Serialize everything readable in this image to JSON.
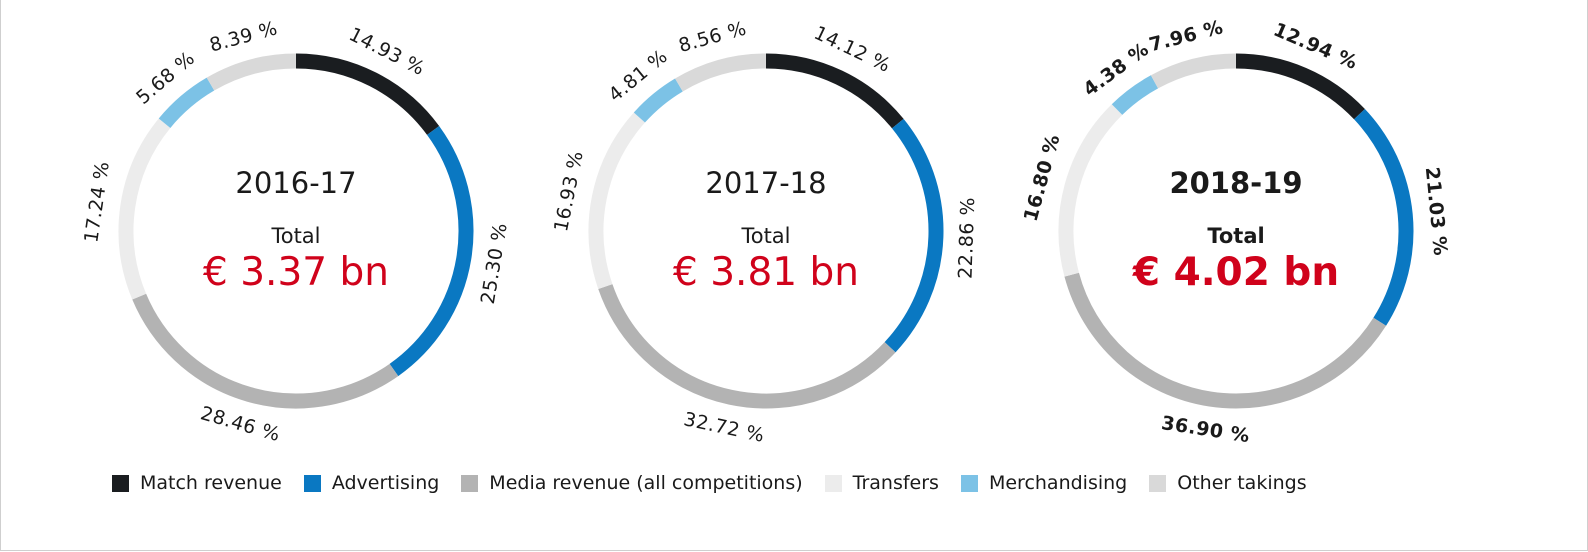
{
  "chart_data": {
    "type": "pie",
    "categories": [
      "Match revenue",
      "Advertising",
      "Media revenue (all competitions)",
      "Transfers",
      "Merchandising",
      "Other takings"
    ],
    "colors": [
      "#1a1d20",
      "#0a78c2",
      "#b3b3b3",
      "#ececec",
      "#7cc2e6",
      "#d9d9d9"
    ],
    "legend_position": "bottom",
    "charts": [
      {
        "year": "2016-17",
        "total_label": "Total",
        "total_value": "€ 3.37 bn",
        "bold": false,
        "values": [
          14.93,
          25.3,
          28.46,
          17.24,
          5.68,
          8.39
        ],
        "labels": [
          "14.93 %",
          "25.30 %",
          "28.46 %",
          "17.24 %",
          "5.68 %",
          "8.39 %"
        ]
      },
      {
        "year": "2017-18",
        "total_label": "Total",
        "total_value": "€ 3.81 bn",
        "bold": false,
        "values": [
          14.12,
          22.86,
          32.72,
          16.93,
          4.81,
          8.56
        ],
        "labels": [
          "14.12 %",
          "22.86 %",
          "32.72 %",
          "16.93 %",
          "4.81 %",
          "8.56 %"
        ]
      },
      {
        "year": "2018-19",
        "total_label": "Total",
        "total_value": "€ 4.02 bn",
        "bold": true,
        "values": [
          12.94,
          21.03,
          36.9,
          16.8,
          4.38,
          7.96
        ],
        "labels": [
          "12.94 %",
          "21.03 %",
          "36.90 %",
          "16.80 %",
          "4.38 %",
          "7.96 %"
        ]
      }
    ]
  }
}
